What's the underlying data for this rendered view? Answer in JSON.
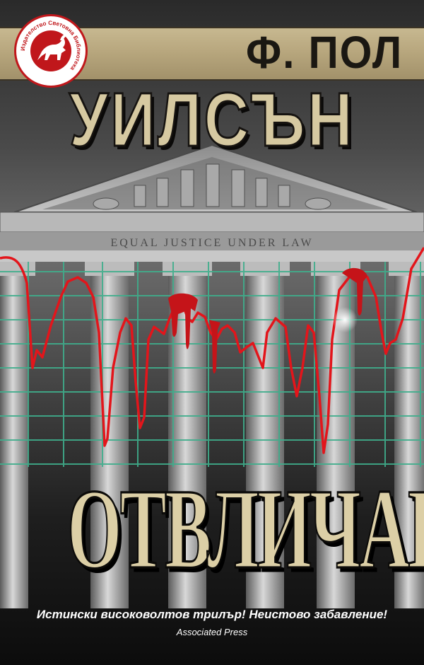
{
  "cover": {
    "author_first": "Ф. ПОЛ",
    "author_last": "УИЛСЪН",
    "title": "ОТВЛИЧАНЕ",
    "tagline": "Истински високоволтов трилър! Неистово забавление!",
    "attribution": "Associated Press",
    "building_inscription": "EQUAL JUSTICE UNDER LAW"
  },
  "publisher_logo": {
    "ring_text": "Издателство Световна Библиотека"
  },
  "colors": {
    "banner": "#b6a57c",
    "title_fill": "#dccfa6",
    "grid": "#3fae8c",
    "ekg_line": "#e3151b",
    "logo_red": "#c0171b"
  }
}
